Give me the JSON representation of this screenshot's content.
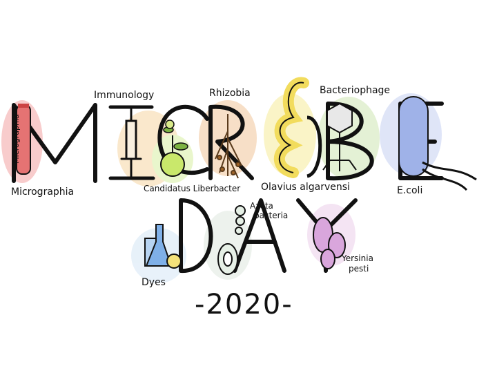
{
  "title_word_1": "MICROBE",
  "title_word_2": "DAY",
  "year": "-2020-",
  "labels": {
    "micrographia_tube": "Micrographia",
    "micrographia": "Micrographia",
    "immunology": "Immunology",
    "rhizobia": "Rhizobia",
    "bacteriophage": "Bacteriophage",
    "candidatus": "Candidatus Liberbacter",
    "olavius": "Olavius algarvensi",
    "ecoli": "E.coli",
    "azota": "Azota\nbacteria",
    "azota_line1": "Azota",
    "azota_line2": "bacteria",
    "dyes": "Dyes",
    "yersinia_line1": "Yersinia",
    "yersinia_line2": "pesti"
  },
  "colors": {
    "ink": "#111111",
    "red": "#e57373",
    "orange": "#f6c38b",
    "yellow": "#f4e27a",
    "green": "#b7dd92",
    "blue": "#9fb2e8",
    "purple": "#d9a6dc"
  }
}
